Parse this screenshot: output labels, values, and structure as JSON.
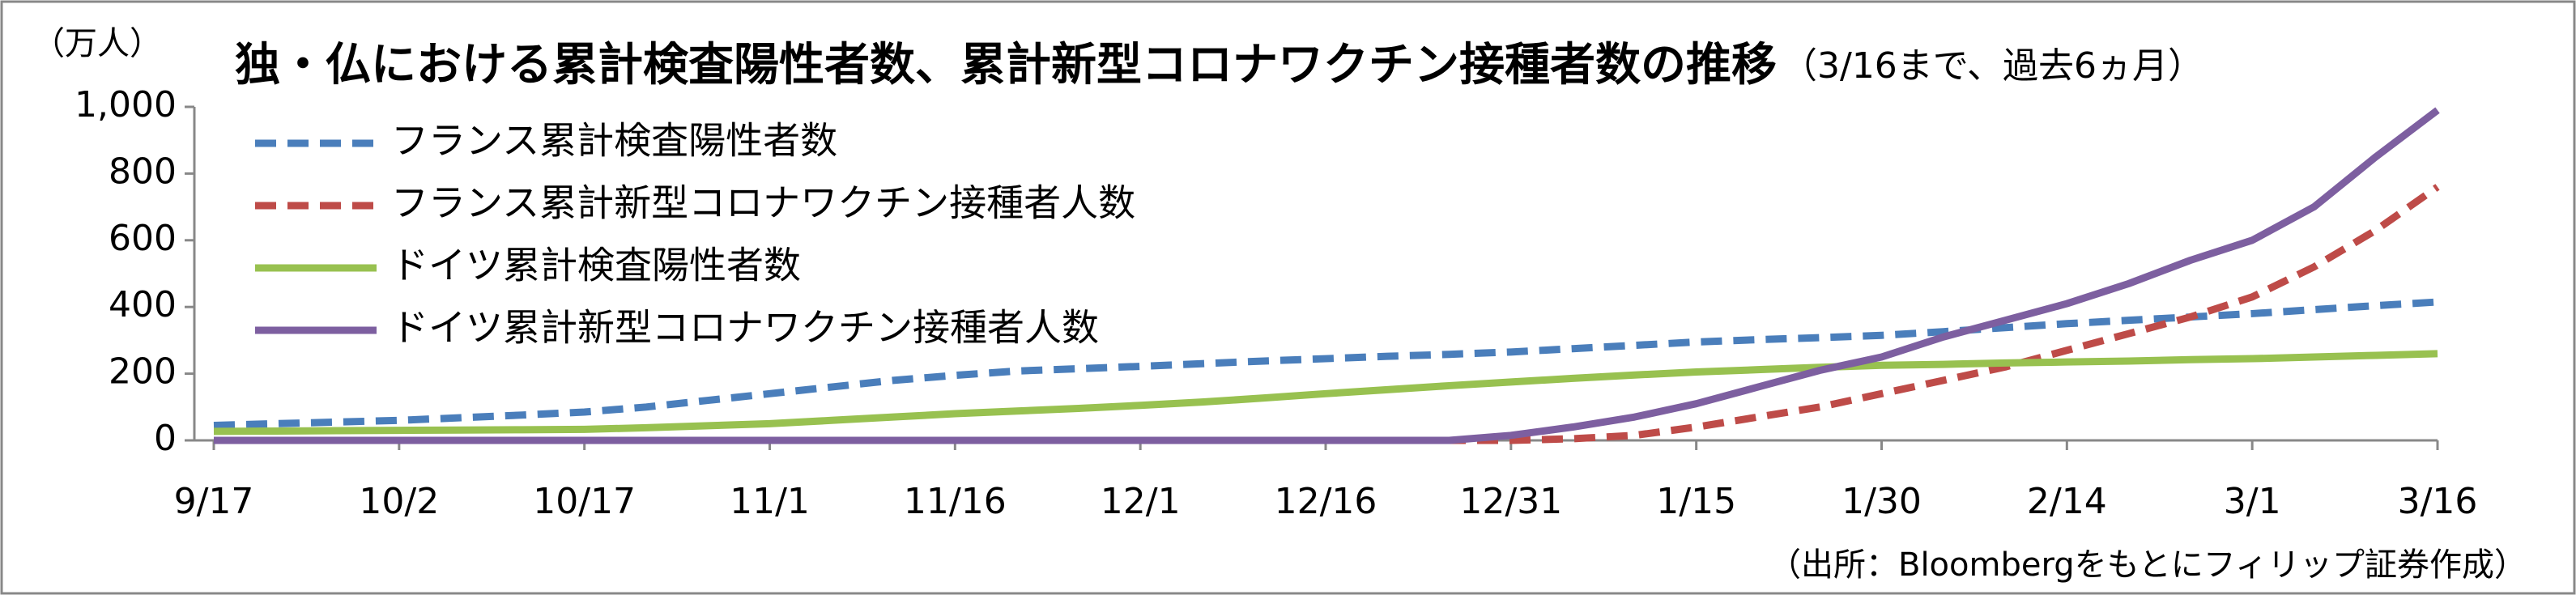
{
  "chart_data": {
    "type": "line",
    "title": "独・仏における累計検査陽性者数、累計新型コロナワクチン接種者数の推移",
    "subtitle": "（3/16まで、過去6ヵ月）",
    "y_label": "（万人）",
    "source": "（出所：Bloombergをもとにフィリップ証券作成）",
    "categories": [
      "9/17",
      null,
      null,
      "10/2",
      null,
      null,
      "10/17",
      null,
      null,
      "11/1",
      null,
      null,
      "11/16",
      null,
      null,
      "12/1",
      null,
      null,
      "12/16",
      null,
      null,
      "12/31",
      null,
      null,
      "1/15",
      null,
      null,
      "1/30",
      null,
      null,
      "2/14",
      null,
      null,
      "3/1",
      null,
      null,
      "3/16"
    ],
    "ylim": [
      0,
      1000
    ],
    "yticks": [
      0,
      200,
      400,
      600,
      800,
      {
        "value": 1000,
        "label": "1,000"
      }
    ],
    "legend": "upper left",
    "series": [
      {
        "name": "フランス累計検査陽性者数",
        "color": "#4a7ebb",
        "dashed": true,
        "values": [
          45,
          50,
          55,
          60,
          68,
          76,
          85,
          100,
          120,
          140,
          160,
          180,
          195,
          208,
          215,
          222,
          230,
          238,
          245,
          252,
          258,
          265,
          275,
          285,
          295,
          302,
          308,
          315,
          326,
          338,
          350,
          360,
          370,
          380,
          392,
          404,
          415
        ]
      },
      {
        "name": "フランス累計新型コロナワクチン接種者人数",
        "color": "#be4b48",
        "dashed": true,
        "values": [
          0,
          0,
          0,
          0,
          0,
          0,
          0,
          0,
          0,
          0,
          0,
          0,
          0,
          0,
          0,
          0,
          0,
          0,
          0,
          0,
          0,
          0,
          5,
          15,
          40,
          70,
          100,
          140,
          180,
          220,
          270,
          320,
          370,
          430,
          520,
          630,
          760
        ]
      },
      {
        "name": "ドイツ累計検査陽性者数",
        "color": "#98c150",
        "dashed": false,
        "values": [
          27,
          28,
          29,
          30,
          31,
          32,
          33,
          38,
          44,
          50,
          60,
          70,
          80,
          88,
          96,
          105,
          115,
          127,
          140,
          152,
          164,
          175,
          186,
          196,
          205,
          212,
          219,
          225,
          228,
          232,
          235,
          238,
          242,
          245,
          250,
          255,
          260
        ]
      },
      {
        "name": "ドイツ累計新型コロナワクチン接種者人数",
        "color": "#7d5fa0",
        "dashed": false,
        "values": [
          0,
          0,
          0,
          0,
          0,
          0,
          0,
          0,
          0,
          0,
          0,
          0,
          0,
          0,
          0,
          0,
          0,
          0,
          0,
          0,
          0,
          15,
          40,
          70,
          110,
          160,
          210,
          250,
          310,
          360,
          410,
          470,
          540,
          600,
          700,
          850,
          990
        ]
      }
    ]
  }
}
